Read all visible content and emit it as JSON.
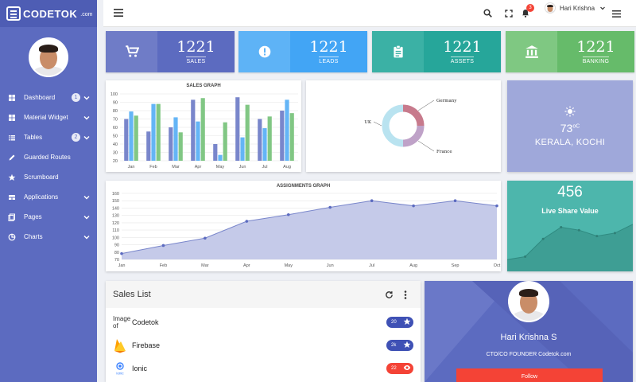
{
  "brand": {
    "name": "CODETOK",
    "sub": ".com"
  },
  "sidebar": {
    "items": [
      {
        "label": "Dashboard",
        "icon": "dashboard-icon",
        "badge": "1",
        "chevron": true
      },
      {
        "label": "Material Widget",
        "icon": "widget-icon",
        "badge": "",
        "chevron": true
      },
      {
        "label": "Tables",
        "icon": "list-icon",
        "badge": "2",
        "chevron": true
      },
      {
        "label": "Guarded Routes",
        "icon": "pencil-icon",
        "badge": "",
        "chevron": false
      },
      {
        "label": "Scrumboard",
        "icon": "star-icon",
        "badge": "",
        "chevron": false
      },
      {
        "label": "Applications",
        "icon": "apps-icon",
        "badge": "",
        "chevron": true
      },
      {
        "label": "Pages",
        "icon": "pages-icon",
        "badge": "",
        "chevron": true
      },
      {
        "label": "Charts",
        "icon": "pie-icon",
        "badge": "",
        "chevron": true
      }
    ]
  },
  "topbar": {
    "user_name": "Hari Krishna",
    "notifications": "3"
  },
  "stats": [
    {
      "value": "1221",
      "label": "SALES",
      "icon": "cart-icon",
      "color_icon": "#6f7cc7",
      "color_body": "#5c6bc0"
    },
    {
      "value": "1221",
      "label": "LEADS",
      "icon": "alert-icon",
      "color_icon": "#5eb3f6",
      "color_body": "#42a5f5"
    },
    {
      "value": "1221",
      "label": "ASSETS",
      "icon": "clipboard-icon",
      "color_icon": "#3bb1a5",
      "color_body": "#26a69a"
    },
    {
      "value": "1221",
      "label": "BANKING",
      "icon": "bank-icon",
      "color_icon": "#7fc882",
      "color_body": "#66bb6a"
    }
  ],
  "weather": {
    "temp": "73",
    "unit": "oC",
    "city": "KERALA, KOCHI",
    "icon": "sun-icon"
  },
  "share": {
    "value": "456",
    "label": "Live Share Value"
  },
  "sales_list": {
    "title": "Sales List",
    "items": [
      {
        "name": "Codetok",
        "alt": "Image of",
        "count": "20",
        "icon": "star-icon",
        "color": "#3f51b5"
      },
      {
        "name": "Firebase",
        "alt": "",
        "count": "2k",
        "icon": "star-icon",
        "color": "#3f51b5"
      },
      {
        "name": "Ionic",
        "alt": "",
        "count": "22",
        "icon": "eye-icon",
        "color": "#f44336"
      }
    ]
  },
  "profile_card": {
    "name": "Hari Krishna S",
    "role": "CTO/CO FOUNDER Codetok.com",
    "follow_label": "Follow"
  },
  "chart_data": [
    {
      "type": "bar",
      "title": "SALES GRAPH",
      "categories": [
        "Jan",
        "Feb",
        "Mar",
        "Apr",
        "May",
        "Jun",
        "Jul",
        "Aug"
      ],
      "ylim": [
        20,
        100
      ],
      "yticks": [
        20,
        30,
        40,
        50,
        60,
        70,
        80,
        90,
        100
      ],
      "series": [
        {
          "color": "#7986cb",
          "values": [
            70,
            55,
            60,
            93,
            40,
            96,
            70,
            80
          ]
        },
        {
          "color": "#64b5f6",
          "values": [
            79,
            88,
            72,
            67,
            27,
            48,
            59,
            93
          ]
        },
        {
          "color": "#81c784",
          "values": [
            74,
            88,
            54,
            95,
            66,
            87,
            73,
            77
          ]
        }
      ]
    },
    {
      "type": "pie",
      "labels": [
        "Germany",
        "France",
        "UK"
      ],
      "values": [
        25,
        25,
        50
      ],
      "colors": [
        "#c77a8c",
        "#bfa2c8",
        "#b9e3f0"
      ]
    },
    {
      "type": "area",
      "title": "ASSIGNMENTS GRAPH",
      "categories": [
        "Jan",
        "Feb",
        "Mar",
        "Apr",
        "May",
        "Jun",
        "Jul",
        "Aug",
        "Sep",
        "Oct"
      ],
      "values": [
        78,
        89,
        99,
        122,
        131,
        141,
        150,
        143,
        150,
        143
      ],
      "ylim": [
        70,
        160
      ],
      "yticks": [
        70,
        80,
        90,
        100,
        110,
        120,
        130,
        140,
        150,
        160
      ]
    },
    {
      "type": "area",
      "values": [
        20,
        25,
        55,
        75,
        70,
        60,
        65,
        80
      ],
      "ylim": [
        0,
        100
      ]
    }
  ]
}
